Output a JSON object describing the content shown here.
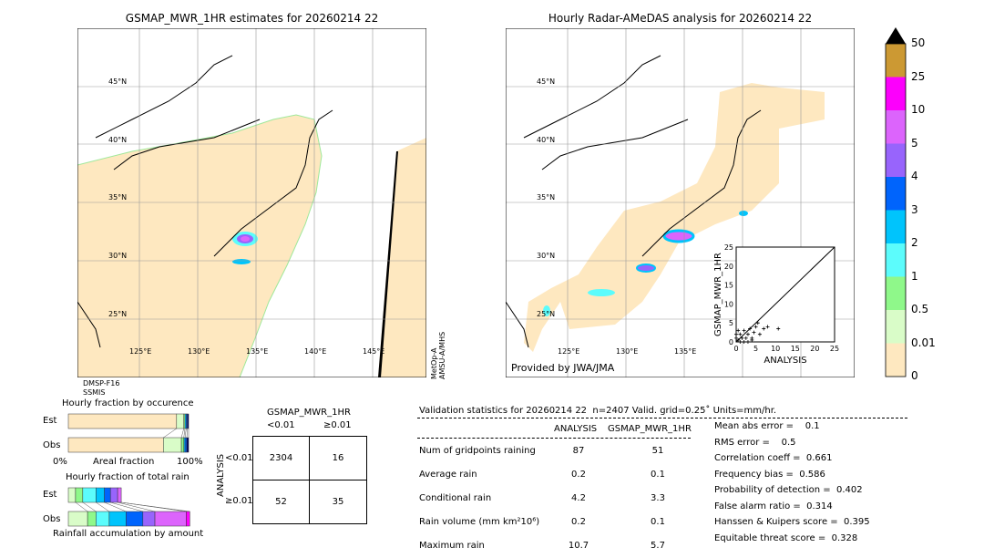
{
  "left_map": {
    "title": "GSMAP_MWR_1HR estimates for 20260214 22",
    "sensor1": "DMSP-F16",
    "sensor2": "SSMIS",
    "side_label1": "MetOp-A",
    "side_label2": "AMSU-A/MHS",
    "lat_labels": [
      "45°N",
      "40°N",
      "35°N",
      "30°N",
      "25°N"
    ],
    "lon_labels": [
      "125°E",
      "130°E",
      "135°E",
      "140°E",
      "145°E"
    ]
  },
  "right_map": {
    "title": "Hourly Radar-AMeDAS analysis for 20260214 22",
    "credit": "Provided by JWA/JMA",
    "lat_labels": [
      "45°N",
      "40°N",
      "35°N",
      "30°N",
      "25°N"
    ],
    "lon_labels": [
      "125°E",
      "130°E",
      "135°E"
    ]
  },
  "colorbar": {
    "labels": [
      "0",
      "0.01",
      "0.5",
      "1",
      "2",
      "3",
      "4",
      "5",
      "10",
      "25",
      "50"
    ],
    "colors": [
      "#fee8c0",
      "#d9fcc8",
      "#8ff88a",
      "#5cfcfc",
      "#00c4fc",
      "#0064fc",
      "#9864fc",
      "#dc64fc",
      "#fc00fc",
      "#cc9933"
    ],
    "extend_color": "#000000"
  },
  "chart_data": [
    {
      "type": "scatter",
      "title": "",
      "xlabel": "ANALYSIS",
      "ylabel": "GSMAP_MWR_1HR",
      "xlim": [
        0,
        25
      ],
      "ylim": [
        0,
        25
      ],
      "ticks": [
        "0",
        "5",
        "10",
        "15",
        "20",
        "25"
      ],
      "points": [
        [
          0.5,
          0.5
        ],
        [
          1,
          2
        ],
        [
          1.5,
          1
        ],
        [
          2,
          3
        ],
        [
          2.5,
          1
        ],
        [
          3,
          2
        ],
        [
          3.5,
          3.5
        ],
        [
          4,
          1
        ],
        [
          4.5,
          2.5
        ],
        [
          5,
          4
        ],
        [
          5.5,
          5
        ],
        [
          6,
          2
        ],
        [
          7,
          3.5
        ],
        [
          8,
          4
        ],
        [
          10.7,
          3.5
        ],
        [
          1,
          0
        ],
        [
          2,
          0
        ],
        [
          3,
          0
        ],
        [
          4,
          0.5
        ],
        [
          0,
          1
        ],
        [
          0,
          2
        ],
        [
          0.5,
          3
        ]
      ]
    },
    {
      "type": "bar",
      "title": "Hourly fraction by occurence",
      "xlabel": "Areal fraction",
      "x_ticks": [
        "0%",
        "100%"
      ],
      "categories": [
        "Est",
        "Obs"
      ],
      "series": [
        {
          "color": "#fee8c0",
          "values": [
            0.9,
            0.79
          ]
        },
        {
          "color": "#d9fcc8",
          "values": [
            0.06,
            0.15
          ]
        },
        {
          "color": "#8ff88a",
          "values": [
            0.01,
            0.02
          ]
        },
        {
          "color": "#00c4fc",
          "values": [
            0.01,
            0.01
          ]
        },
        {
          "color": "#0064fc",
          "values": [
            0.01,
            0.015
          ]
        },
        {
          "color": "#000060",
          "values": [
            0.01,
            0.015
          ]
        }
      ]
    },
    {
      "type": "bar",
      "title": "Hourly fraction of total rain",
      "xlabel": "Rainfall accumulation by amount",
      "categories": [
        "Est",
        "Obs"
      ],
      "series": [
        {
          "color": "#d9fcc8",
          "values": [
            0.06,
            0.16
          ]
        },
        {
          "color": "#8ff88a",
          "values": [
            0.06,
            0.07
          ]
        },
        {
          "color": "#5cfcfc",
          "values": [
            0.11,
            0.11
          ]
        },
        {
          "color": "#00c4fc",
          "values": [
            0.07,
            0.14
          ]
        },
        {
          "color": "#0064fc",
          "values": [
            0.05,
            0.14
          ]
        },
        {
          "color": "#9864fc",
          "values": [
            0.06,
            0.1
          ]
        },
        {
          "color": "#dc64fc",
          "values": [
            0.03,
            0.26
          ]
        },
        {
          "color": "#fc00fc",
          "values": [
            0,
            0.03
          ]
        }
      ]
    },
    {
      "type": "table",
      "title": "GSMAP_MWR_1HR",
      "col_headers": [
        "<0.01",
        "≥0.01"
      ],
      "row_label": "ANALYSIS",
      "row_headers": [
        "<0.01",
        "≥0.01"
      ],
      "cells": [
        [
          "2304",
          "16"
        ],
        [
          "52",
          "35"
        ]
      ]
    }
  ],
  "stats": {
    "header": "Validation statistics for 20260214 22  n=2407 Valid. grid=0.25˚ Units=mm/hr.",
    "col1": "ANALYSIS",
    "col2": "GSMAP_MWR_1HR",
    "rows": [
      {
        "label": "Num of gridpoints raining",
        "a": "87",
        "g": "51"
      },
      {
        "label": "Average rain",
        "a": "0.2",
        "g": "0.1"
      },
      {
        "label": "Conditional rain",
        "a": "4.2",
        "g": "3.3"
      },
      {
        "label": "Rain volume (mm km²10⁶)",
        "a": "0.2",
        "g": "0.1"
      },
      {
        "label": "Maximum rain",
        "a": "10.7",
        "g": "5.7"
      }
    ],
    "scores": [
      "Mean abs error =    0.1",
      "RMS error =    0.5",
      "Correlation coeff =  0.661",
      "Frequency bias =  0.586",
      "Probability of detection =  0.402",
      "False alarm ratio =  0.314",
      "Hanssen & Kuipers score =  0.395",
      "Equitable threat score =  0.328"
    ]
  }
}
